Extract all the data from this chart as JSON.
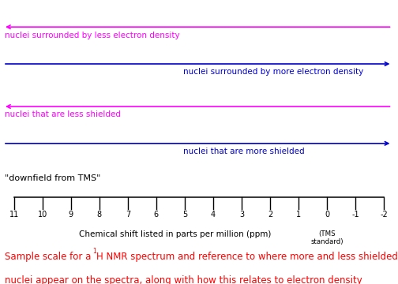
{
  "background_color": "#ffffff",
  "arrow1_color": "#ff00ff",
  "arrow2_color": "#0000cd",
  "arrow3_color": "#ff00ff",
  "arrow4_color": "#0000cd",
  "label1": "nuclei surrounded by less electron density",
  "label2": "nuclei surrounded by more electron density",
  "label3": "nuclei that are less shielded",
  "label4": "nuclei that are more shielded",
  "downfield_text": "\"downfield from TMS\"",
  "xlabel": "Chemical shift listed in parts per million (ppm)",
  "tms_label": "(TMS\nstandard)",
  "caption3": "nuclei appear on the spectra, along with how this relates to electron density",
  "caption_color": "#ff0000",
  "tick_labels": [
    "11",
    "10",
    "9",
    "8",
    "7",
    "6",
    "5",
    "4",
    "3",
    "2",
    "1",
    "0",
    "-1",
    "-2"
  ],
  "tick_values": [
    11,
    10,
    9,
    8,
    7,
    6,
    5,
    4,
    3,
    2,
    1,
    0,
    -1,
    -2
  ],
  "label_fontsize": 7.5,
  "caption_fontsize": 8.5,
  "tick_fontsize": 7,
  "downfield_fontsize": 8
}
